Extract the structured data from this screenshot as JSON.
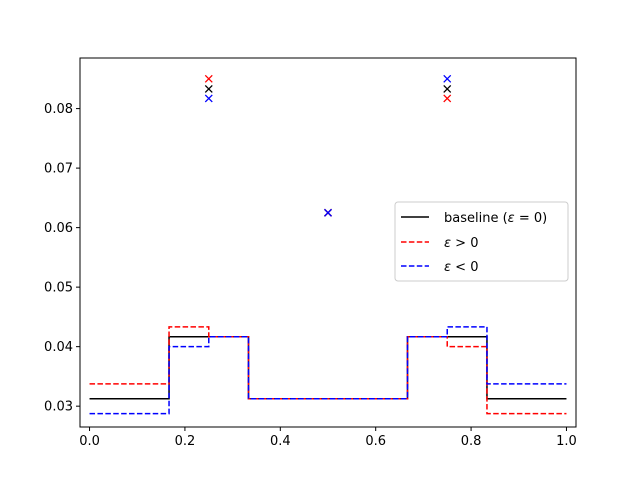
{
  "chart_data": {
    "type": "line",
    "title": "",
    "xlabel": "",
    "ylabel": "",
    "xlim": [
      -0.02,
      1.02
    ],
    "ylim": [
      0.0265,
      0.0885
    ],
    "xticks": [
      0.0,
      0.2,
      0.4,
      0.6,
      0.8,
      1.0
    ],
    "xtick_labels": [
      "0.0",
      "0.2",
      "0.4",
      "0.6",
      "0.8",
      "1.0"
    ],
    "yticks": [
      0.03,
      0.04,
      0.05,
      0.06,
      0.07,
      0.08
    ],
    "ytick_labels": [
      "0.03",
      "0.04",
      "0.05",
      "0.06",
      "0.07",
      "0.08"
    ],
    "grid": false,
    "legend_position": "center-right",
    "series": [
      {
        "name": "baseline (ε = 0)",
        "legend_main": "baseline (",
        "legend_eps": "ε",
        "legend_rest": " = 0)",
        "color": "#000000",
        "dash": "solid",
        "steps": [
          {
            "x0": 0.0,
            "x1": 0.1667,
            "y": 0.03125
          },
          {
            "x0": 0.1667,
            "x1": 0.3333,
            "y": 0.04167
          },
          {
            "x0": 0.3333,
            "x1": 0.6667,
            "y": 0.03125
          },
          {
            "x0": 0.6667,
            "x1": 0.8333,
            "y": 0.04167
          },
          {
            "x0": 0.8333,
            "x1": 1.0,
            "y": 0.03125
          }
        ],
        "markers": [
          {
            "x": 0.25,
            "y": 0.0833
          },
          {
            "x": 0.5,
            "y": 0.0625
          },
          {
            "x": 0.75,
            "y": 0.0833
          }
        ]
      },
      {
        "name": "ε > 0",
        "legend_main": "",
        "legend_eps": "ε",
        "legend_rest": " > 0",
        "color": "#ff0000",
        "dash": "dashed",
        "steps": [
          {
            "x0": 0.0,
            "x1": 0.1667,
            "y": 0.03375
          },
          {
            "x0": 0.1667,
            "x1": 0.25,
            "y": 0.04333
          },
          {
            "x0": 0.25,
            "x1": 0.3333,
            "y": 0.04167
          },
          {
            "x0": 0.3333,
            "x1": 0.6667,
            "y": 0.03125
          },
          {
            "x0": 0.6667,
            "x1": 0.75,
            "y": 0.04167
          },
          {
            "x0": 0.75,
            "x1": 0.8333,
            "y": 0.04
          },
          {
            "x0": 0.8333,
            "x1": 1.0,
            "y": 0.02875
          }
        ],
        "markers": [
          {
            "x": 0.25,
            "y": 0.085
          },
          {
            "x": 0.5,
            "y": 0.0625
          },
          {
            "x": 0.75,
            "y": 0.0817
          }
        ]
      },
      {
        "name": "ε < 0",
        "legend_main": "",
        "legend_eps": "ε",
        "legend_rest": " < 0",
        "color": "#0000ff",
        "dash": "dashed",
        "steps": [
          {
            "x0": 0.0,
            "x1": 0.1667,
            "y": 0.02875
          },
          {
            "x0": 0.1667,
            "x1": 0.25,
            "y": 0.04
          },
          {
            "x0": 0.25,
            "x1": 0.3333,
            "y": 0.04167
          },
          {
            "x0": 0.3333,
            "x1": 0.6667,
            "y": 0.03125
          },
          {
            "x0": 0.6667,
            "x1": 0.75,
            "y": 0.04167
          },
          {
            "x0": 0.75,
            "x1": 0.8333,
            "y": 0.04333
          },
          {
            "x0": 0.8333,
            "x1": 1.0,
            "y": 0.03375
          }
        ],
        "markers": [
          {
            "x": 0.25,
            "y": 0.0817
          },
          {
            "x": 0.5,
            "y": 0.0625
          },
          {
            "x": 0.75,
            "y": 0.085
          }
        ]
      }
    ]
  }
}
